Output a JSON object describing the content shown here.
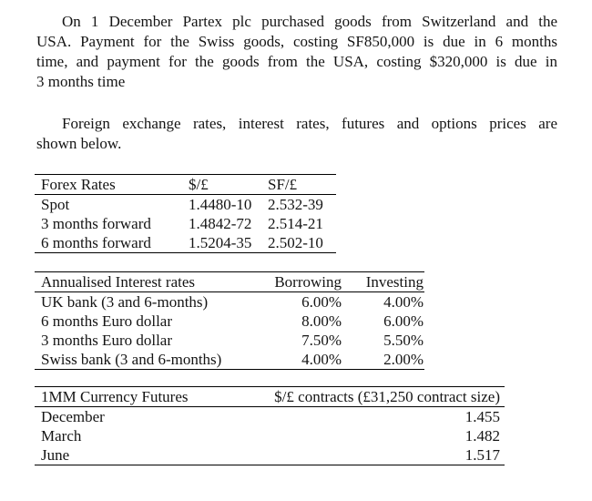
{
  "intro": {
    "lines": [
      "On 1 December Partex plc purchased goods from Switzerland and the",
      "USA. Payment for the Swiss goods, costing SF850,000 is due in 6 months",
      "time, and payment for the goods from the USA, costing $320,000 is due in",
      "3 months time"
    ]
  },
  "rates_note": {
    "lines": [
      "Foreign exchange rates, interest rates, futures and options prices are",
      "shown below."
    ]
  },
  "forex_table": {
    "headers": [
      "Forex Rates",
      "$/£",
      "SF/£"
    ],
    "rows": [
      [
        "Spot",
        "1.4480-10",
        "2.532-39"
      ],
      [
        "3 months forward",
        "1.4842-72",
        "2.514-21"
      ],
      [
        "6 months forward",
        "1.5204-35",
        "2.502-10"
      ]
    ]
  },
  "interest_table": {
    "headers": [
      "Annualised Interest rates",
      "Borrowing",
      "Investing"
    ],
    "rows": [
      [
        "UK bank (3 and 6-months)",
        "6.00%",
        "4.00%"
      ],
      [
        "6 months Euro dollar",
        "8.00%",
        "6.00%"
      ],
      [
        "3 months Euro dollar",
        "7.50%",
        "5.50%"
      ],
      [
        "Swiss bank (3 and 6-months)",
        "4.00%",
        "2.00%"
      ]
    ]
  },
  "futures_table": {
    "headers": [
      "1MM Currency Futures",
      "$/£ contracts (£31,250 contract size)"
    ],
    "rows": [
      [
        "December",
        "1.455"
      ],
      [
        "March",
        "1.482"
      ],
      [
        "June",
        "1.517"
      ]
    ]
  }
}
